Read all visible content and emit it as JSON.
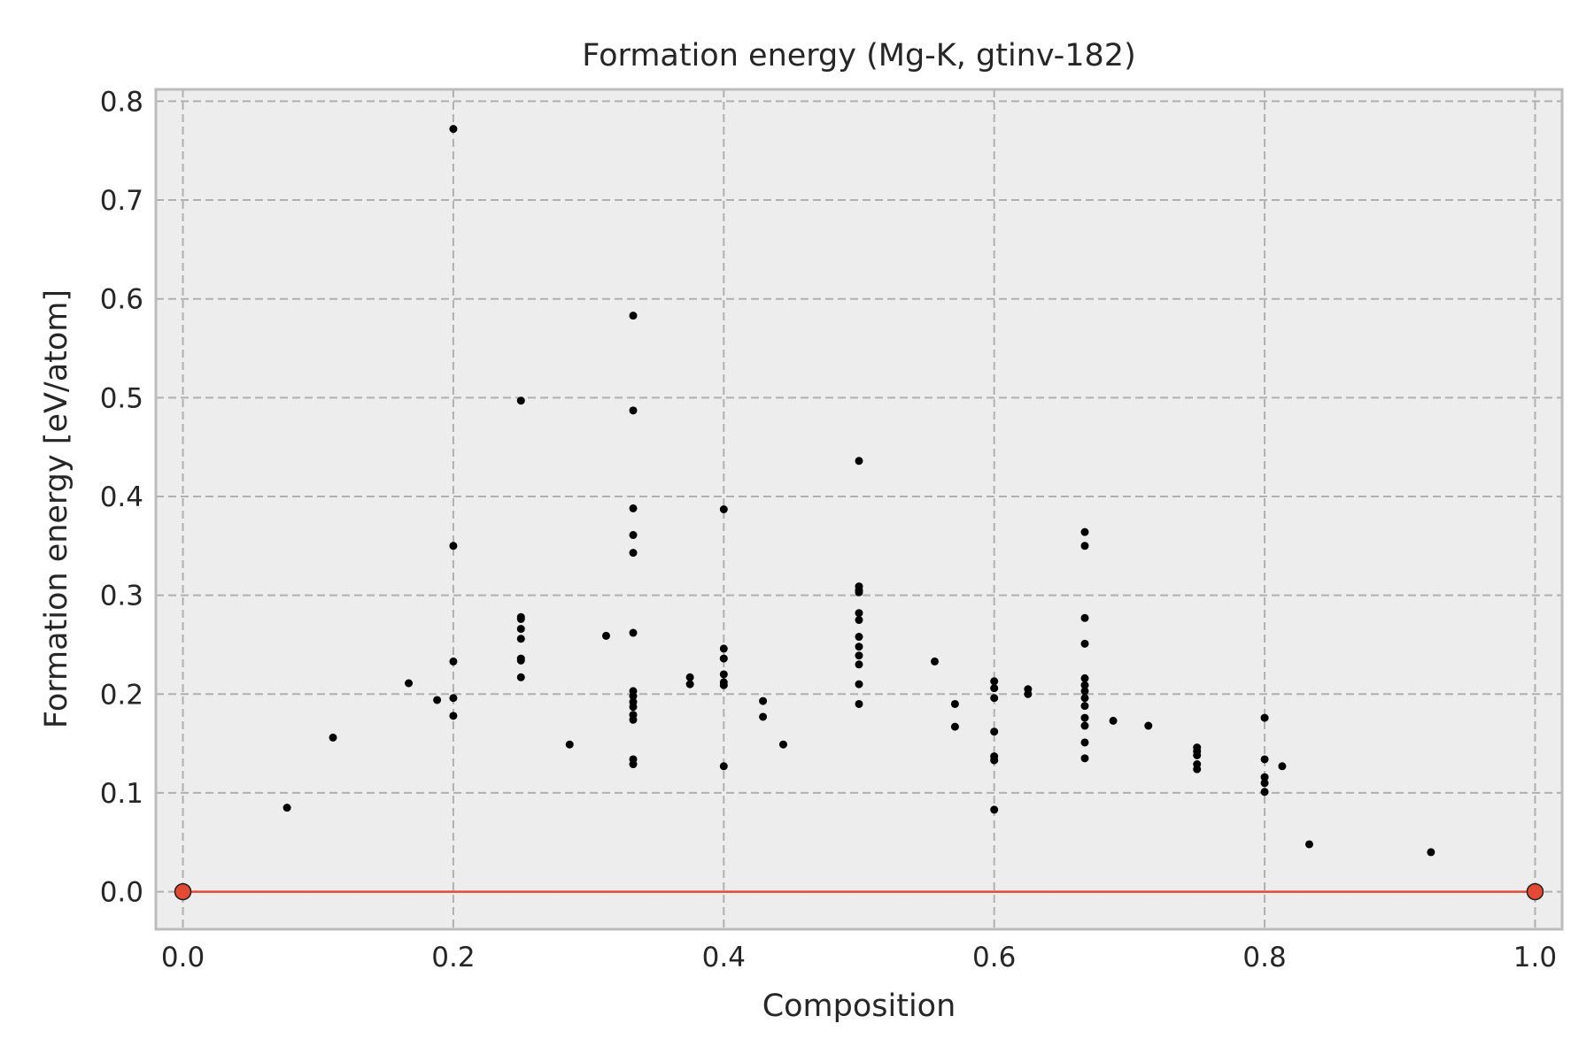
{
  "chart_data": {
    "type": "scatter",
    "title": "Formation energy (Mg-K, gtinv-182)",
    "xlabel": "Composition",
    "ylabel": "Formation energy [eV/atom]",
    "xlim": [
      -0.02,
      1.02
    ],
    "ylim": [
      -0.038,
      0.812
    ],
    "xticks": [
      "0.0",
      "0.2",
      "0.4",
      "0.6",
      "0.8",
      "1.0"
    ],
    "yticks": [
      "0.0",
      "0.1",
      "0.2",
      "0.3",
      "0.4",
      "0.5",
      "0.6",
      "0.7",
      "0.8"
    ],
    "grid": true,
    "background_color": "#ededed",
    "colors": {
      "points": "#000000",
      "hull": "#e24a33"
    },
    "series": [
      {
        "kind": "points",
        "points": [
          [
            0.077,
            0.085
          ],
          [
            0.111,
            0.156
          ],
          [
            0.167,
            0.211
          ],
          [
            0.188,
            0.194
          ],
          [
            0.2,
            0.772
          ],
          [
            0.2,
            0.35
          ],
          [
            0.2,
            0.233
          ],
          [
            0.2,
            0.196
          ],
          [
            0.2,
            0.178
          ],
          [
            0.25,
            0.497
          ],
          [
            0.25,
            0.278
          ],
          [
            0.25,
            0.276
          ],
          [
            0.25,
            0.266
          ],
          [
            0.25,
            0.256
          ],
          [
            0.25,
            0.236
          ],
          [
            0.25,
            0.234
          ],
          [
            0.25,
            0.217
          ],
          [
            0.286,
            0.149
          ],
          [
            0.313,
            0.259
          ],
          [
            0.333,
            0.583
          ],
          [
            0.333,
            0.487
          ],
          [
            0.333,
            0.388
          ],
          [
            0.333,
            0.361
          ],
          [
            0.333,
            0.343
          ],
          [
            0.333,
            0.262
          ],
          [
            0.333,
            0.203
          ],
          [
            0.333,
            0.198
          ],
          [
            0.333,
            0.192
          ],
          [
            0.333,
            0.187
          ],
          [
            0.333,
            0.179
          ],
          [
            0.333,
            0.174
          ],
          [
            0.333,
            0.134
          ],
          [
            0.333,
            0.129
          ],
          [
            0.375,
            0.217
          ],
          [
            0.375,
            0.21
          ],
          [
            0.4,
            0.387
          ],
          [
            0.4,
            0.246
          ],
          [
            0.4,
            0.236
          ],
          [
            0.4,
            0.22
          ],
          [
            0.4,
            0.212
          ],
          [
            0.4,
            0.209
          ],
          [
            0.4,
            0.127
          ],
          [
            0.429,
            0.193
          ],
          [
            0.429,
            0.177
          ],
          [
            0.444,
            0.149
          ],
          [
            0.5,
            0.436
          ],
          [
            0.5,
            0.309
          ],
          [
            0.5,
            0.305
          ],
          [
            0.5,
            0.303
          ],
          [
            0.5,
            0.282
          ],
          [
            0.5,
            0.275
          ],
          [
            0.5,
            0.258
          ],
          [
            0.5,
            0.248
          ],
          [
            0.5,
            0.239
          ],
          [
            0.5,
            0.23
          ],
          [
            0.5,
            0.21
          ],
          [
            0.5,
            0.19
          ],
          [
            0.556,
            0.233
          ],
          [
            0.571,
            0.19
          ],
          [
            0.571,
            0.167
          ],
          [
            0.6,
            0.213
          ],
          [
            0.6,
            0.206
          ],
          [
            0.6,
            0.196
          ],
          [
            0.6,
            0.162
          ],
          [
            0.6,
            0.137
          ],
          [
            0.6,
            0.133
          ],
          [
            0.6,
            0.083
          ],
          [
            0.625,
            0.205
          ],
          [
            0.625,
            0.2
          ],
          [
            0.667,
            0.364
          ],
          [
            0.667,
            0.35
          ],
          [
            0.667,
            0.277
          ],
          [
            0.667,
            0.251
          ],
          [
            0.667,
            0.216
          ],
          [
            0.667,
            0.209
          ],
          [
            0.667,
            0.203
          ],
          [
            0.667,
            0.196
          ],
          [
            0.667,
            0.188
          ],
          [
            0.667,
            0.176
          ],
          [
            0.667,
            0.168
          ],
          [
            0.667,
            0.151
          ],
          [
            0.667,
            0.135
          ],
          [
            0.688,
            0.173
          ],
          [
            0.714,
            0.168
          ],
          [
            0.75,
            0.146
          ],
          [
            0.75,
            0.142
          ],
          [
            0.75,
            0.138
          ],
          [
            0.75,
            0.129
          ],
          [
            0.75,
            0.124
          ],
          [
            0.8,
            0.176
          ],
          [
            0.8,
            0.134
          ],
          [
            0.8,
            0.116
          ],
          [
            0.8,
            0.11
          ],
          [
            0.8,
            0.101
          ],
          [
            0.813,
            0.127
          ],
          [
            0.833,
            0.048
          ],
          [
            0.923,
            0.04
          ]
        ]
      },
      {
        "kind": "hull",
        "points": [
          [
            0.0,
            0.0
          ],
          [
            1.0,
            0.0
          ]
        ]
      }
    ]
  }
}
